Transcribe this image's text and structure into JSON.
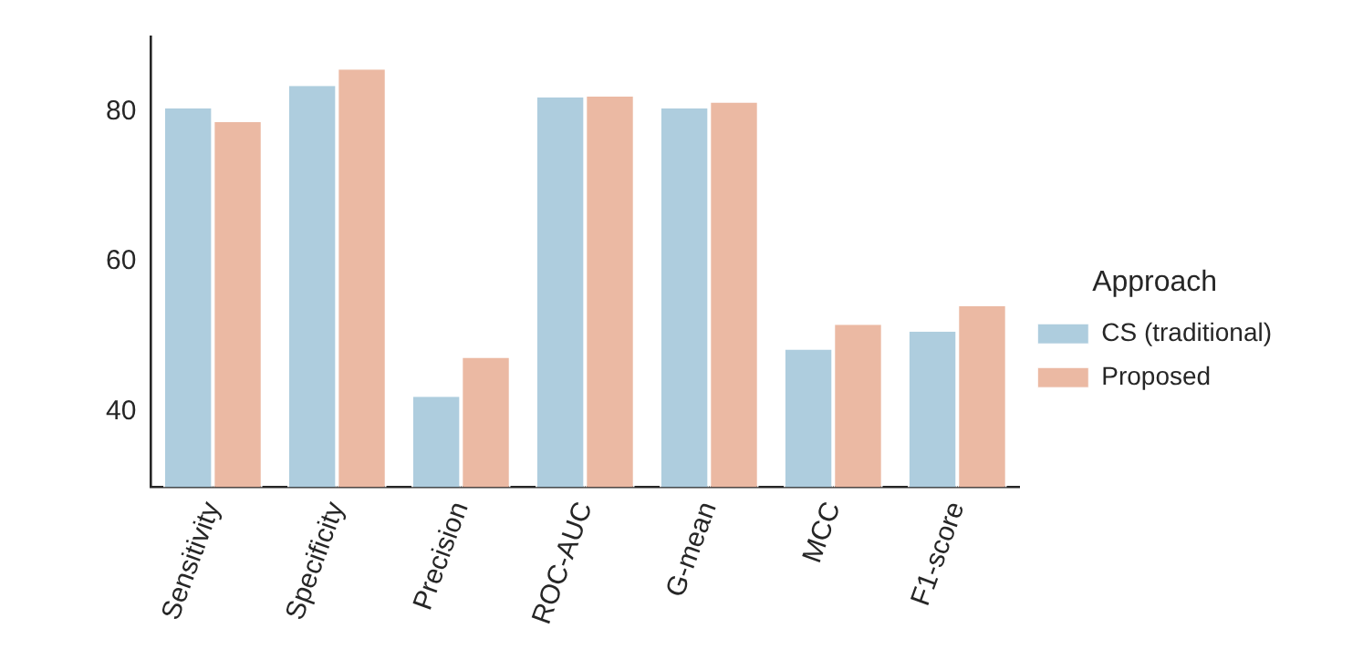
{
  "chart_data": {
    "type": "bar",
    "categories": [
      "Sensitivity",
      "Specificity",
      "Precision",
      "ROC-AUC",
      "G-mean",
      "MCC",
      "F1-score"
    ],
    "series": [
      {
        "name": "CS (traditional)",
        "color": "#aecdde",
        "values": [
          80.4,
          83.4,
          42.0,
          81.9,
          80.4,
          48.3,
          50.7
        ]
      },
      {
        "name": "Proposed",
        "color": "#ebb9a3",
        "values": [
          78.6,
          85.6,
          47.2,
          82.0,
          81.2,
          51.6,
          54.1
        ]
      }
    ],
    "legend_title": "Approach",
    "legend": "right",
    "ylim": [
      30,
      90
    ],
    "yticks": [
      40,
      60,
      80
    ],
    "grid": false
  }
}
